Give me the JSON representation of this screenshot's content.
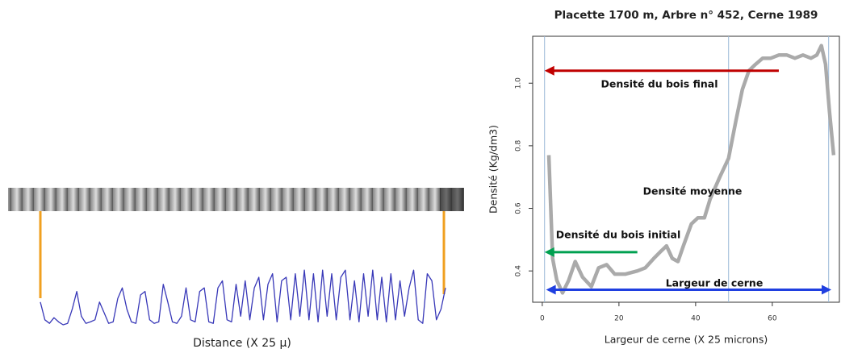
{
  "chart_data": [
    {
      "type": "line",
      "xlabel": "Distance (X 25 μ)",
      "color": "#3838b8",
      "ylim": [
        0,
        100
      ],
      "values": [
        40,
        15,
        10,
        18,
        12,
        8,
        10,
        30,
        55,
        20,
        10,
        12,
        15,
        40,
        25,
        10,
        12,
        45,
        60,
        30,
        12,
        10,
        50,
        55,
        15,
        10,
        12,
        65,
        40,
        12,
        10,
        20,
        60,
        15,
        12,
        55,
        60,
        12,
        10,
        60,
        70,
        15,
        12,
        65,
        20,
        70,
        15,
        60,
        75,
        15,
        65,
        80,
        12,
        70,
        75,
        15,
        80,
        20,
        85,
        15,
        80,
        12,
        85,
        20,
        80,
        15,
        75,
        85,
        15,
        70,
        12,
        80,
        20,
        85,
        15,
        75,
        12,
        80,
        15,
        70,
        20,
        60,
        85,
        15,
        10,
        80,
        70,
        15,
        30,
        60
      ]
    },
    {
      "type": "line",
      "title": "Placette 1700 m, Arbre n° 452, Cerne 1989",
      "xlabel": "Largeur de cerne (X 25 microns)",
      "ylabel": "Densité  (Kg/dm3)",
      "color": "#aaaaaa",
      "x": [
        1.7,
        2.7,
        3.8,
        5.3,
        6.9,
        8.6,
        10.5,
        12.8,
        14.7,
        16.8,
        18.9,
        21.7,
        24.8,
        26.9,
        29.1,
        30.7,
        32.4,
        33.9,
        35.4,
        36.8,
        38.9,
        40.6,
        42.3,
        43.8,
        46.3,
        48.6,
        50.5,
        52.2,
        53.9,
        55.6,
        57.5,
        59.6,
        61.7,
        63.8,
        65.9,
        68,
        70.1,
        71.6,
        72.8,
        73.9,
        74.9,
        76
      ],
      "values": [
        0.77,
        0.44,
        0.37,
        0.33,
        0.37,
        0.43,
        0.38,
        0.35,
        0.41,
        0.42,
        0.39,
        0.39,
        0.4,
        0.41,
        0.44,
        0.46,
        0.48,
        0.44,
        0.43,
        0.48,
        0.55,
        0.57,
        0.57,
        0.63,
        0.7,
        0.76,
        0.88,
        0.98,
        1.04,
        1.06,
        1.08,
        1.08,
        1.09,
        1.09,
        1.08,
        1.09,
        1.08,
        1.09,
        1.12,
        1.06,
        0.91,
        0.77
      ],
      "xlim": [
        -2.5,
        77.5
      ],
      "ylim": [
        0.3,
        1.15
      ],
      "xticks": [
        0,
        20,
        40,
        60
      ],
      "yticks": [
        0.4,
        0.6,
        0.8,
        {
          "value": 1.0,
          "label": "1.0"
        }
      ],
      "vlines": [
        0.6,
        48.6,
        74.7
      ],
      "vline_color": "#9ab8d8",
      "arrows": [
        {
          "x": [
            61.7,
            0.6
          ],
          "y": 1.04,
          "color": "#c00000",
          "double": false
        },
        {
          "x": [
            24.8,
            0.6
          ],
          "y": 0.46,
          "color": "#00a050",
          "double": false
        },
        {
          "x": [
            1,
            75.4
          ],
          "y": 0.34,
          "color": "#1f3fe0",
          "double": true
        }
      ],
      "annotations": [
        "Densité du bois final",
        "Densité moyenne",
        "Densité du bois initial",
        "Largeur de cerne"
      ]
    }
  ]
}
